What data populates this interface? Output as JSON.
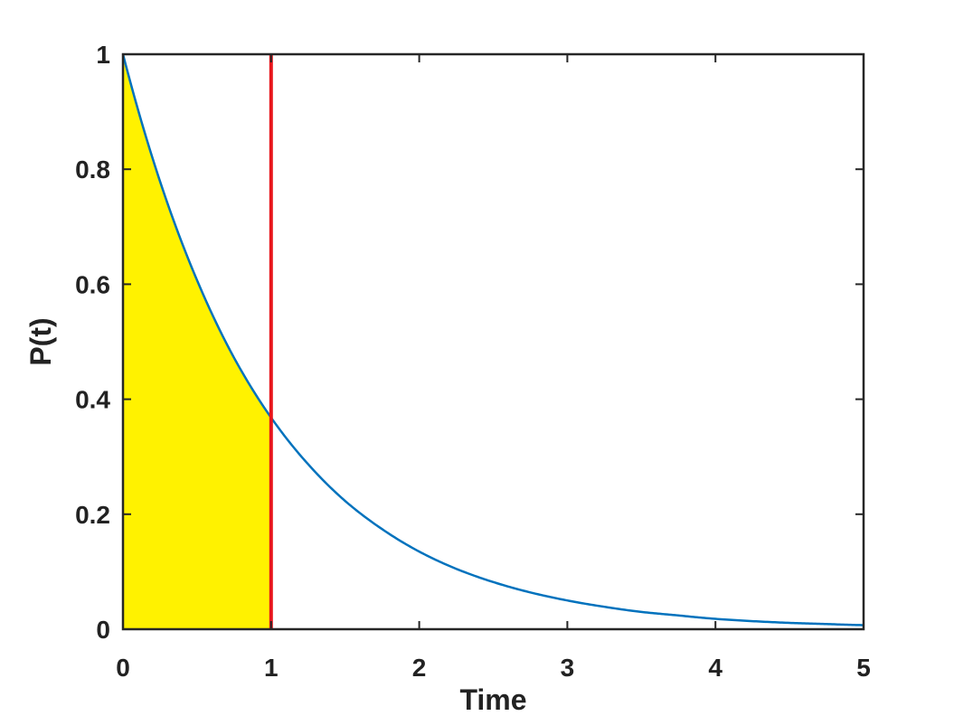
{
  "chart_data": {
    "type": "line",
    "title": "",
    "xlabel": "Time",
    "ylabel": "P(t)",
    "xlim": [
      0,
      5
    ],
    "ylim": [
      0,
      1
    ],
    "x_ticks": [
      0,
      1,
      2,
      3,
      4,
      5
    ],
    "y_ticks": [
      0,
      0.2,
      0.4,
      0.6,
      0.8,
      1
    ],
    "x_tick_labels": [
      "0",
      "1",
      "2",
      "3",
      "4",
      "5"
    ],
    "y_tick_labels": [
      "0",
      "0.2",
      "0.4",
      "0.6",
      "0.8",
      "1"
    ],
    "grid": false,
    "series": [
      {
        "x": [
          0,
          0.25,
          0.5,
          0.75,
          1,
          1.25,
          1.5,
          1.75,
          2,
          2.25,
          2.5,
          2.75,
          3,
          3.25,
          3.5,
          3.75,
          4,
          4.25,
          4.5,
          4.75,
          5
        ],
        "y": [
          1.0,
          0.779,
          0.607,
          0.472,
          0.368,
          0.287,
          0.223,
          0.174,
          0.135,
          0.105,
          0.082,
          0.064,
          0.05,
          0.039,
          0.03,
          0.024,
          0.018,
          0.014,
          0.011,
          0.009,
          0.007
        ],
        "color": "#0072BD"
      }
    ],
    "shaded_region": {
      "x_from": 0,
      "x_to": 1,
      "color": "#FFF200"
    },
    "vertical_line": {
      "x": 1,
      "color": "#E8161C"
    },
    "colors": {
      "axes": "#262626",
      "text": "#222222"
    }
  }
}
